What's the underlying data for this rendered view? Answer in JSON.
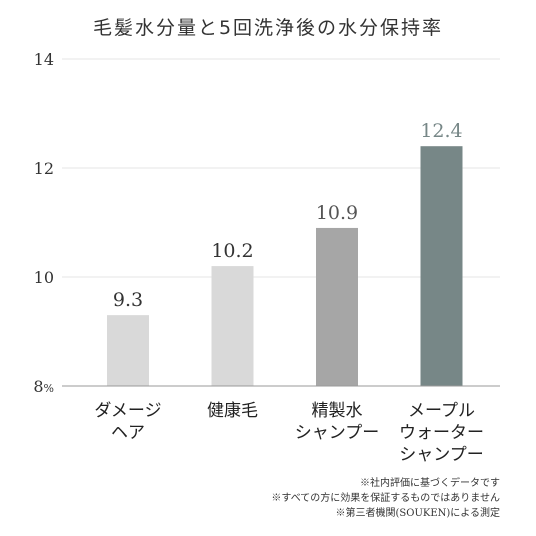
{
  "chart_data": {
    "type": "bar",
    "title": "毛髪水分量と5回洗浄後の水分保持率",
    "categories": [
      [
        "ダメージ",
        "ヘア"
      ],
      [
        "健康毛"
      ],
      [
        "精製水",
        "シャンプー"
      ],
      [
        "メープル",
        "ウォーター",
        "シャンプー"
      ]
    ],
    "values": [
      9.3,
      10.2,
      10.9,
      12.4
    ],
    "value_labels": [
      "9.3",
      "10.2",
      "10.9",
      "12.4"
    ],
    "bar_colors": [
      "#d9d9d9",
      "#d9d9d9",
      "#a6a6a6",
      "#778787"
    ],
    "label_colors": [
      "#333333",
      "#333333",
      "#555555",
      "#778787"
    ],
    "ylim": [
      8,
      14
    ],
    "yticks": [
      "8",
      "10",
      "12",
      "14"
    ],
    "ytick_unit": "%",
    "grid": true,
    "xlabel": "",
    "ylabel": ""
  },
  "footnotes": [
    "※社内評価に基づくデータです",
    "※すべての方に効果を保証するものではありません",
    "※第三者機関(SOUKEN)による測定"
  ]
}
